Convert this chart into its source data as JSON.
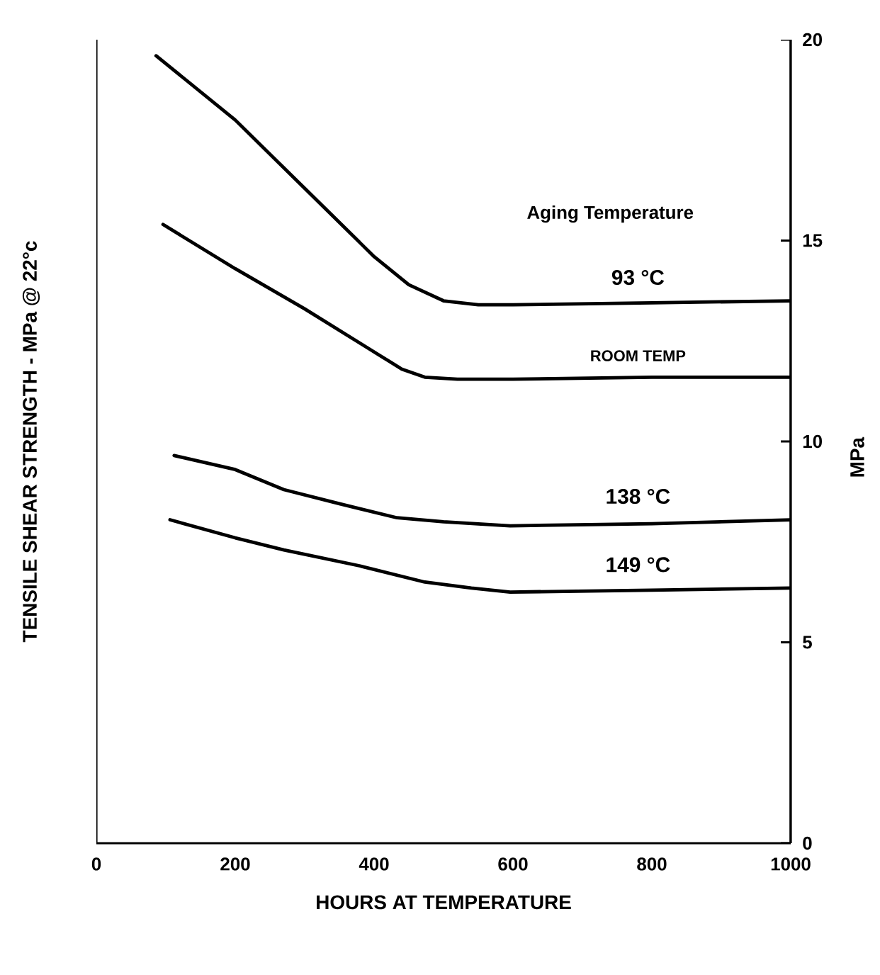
{
  "chart_data": {
    "type": "line",
    "xlabel": "HOURS AT TEMPERATURE",
    "ylabel": "TENSILE SHEAR STRENGTH - MPa @ 22°c",
    "y2label": "MPa",
    "annotations": [
      "Aging Temperature"
    ],
    "xlim": [
      0,
      1000
    ],
    "xticks": [
      0,
      200,
      400,
      600,
      800,
      1000
    ],
    "ylim": [
      0,
      20
    ],
    "yticks": [
      0,
      5,
      10,
      15,
      20
    ],
    "grid": false,
    "marker": "none",
    "line_style": "solid",
    "series": [
      {
        "name": "93 °C",
        "color": "#000000",
        "x": [
          86,
          200,
          300,
          400,
          450,
          500,
          550,
          600,
          800,
          1000
        ],
        "values": [
          19.6,
          18.0,
          16.3,
          14.6,
          13.9,
          13.5,
          13.4,
          13.4,
          13.45,
          13.5
        ]
      },
      {
        "name": "ROOM TEMP",
        "color": "#000000",
        "x": [
          96,
          200,
          300,
          412,
          440,
          473,
          520,
          600,
          800,
          1000
        ],
        "values": [
          15.4,
          14.3,
          13.3,
          12.1,
          11.8,
          11.6,
          11.55,
          11.55,
          11.6,
          11.6
        ]
      },
      {
        "name": "138 °C",
        "color": "#000000",
        "x": [
          112,
          200,
          270,
          350,
          433,
          500,
          596,
          800,
          1000
        ],
        "values": [
          9.65,
          9.3,
          8.8,
          8.45,
          8.1,
          8.0,
          7.9,
          7.95,
          8.05
        ]
      },
      {
        "name": "149 °C",
        "color": "#000000",
        "x": [
          106,
          200,
          270,
          380,
          473,
          540,
          596,
          800,
          1000
        ],
        "values": [
          8.05,
          7.6,
          7.3,
          6.9,
          6.5,
          6.35,
          6.25,
          6.3,
          6.35
        ]
      }
    ]
  }
}
